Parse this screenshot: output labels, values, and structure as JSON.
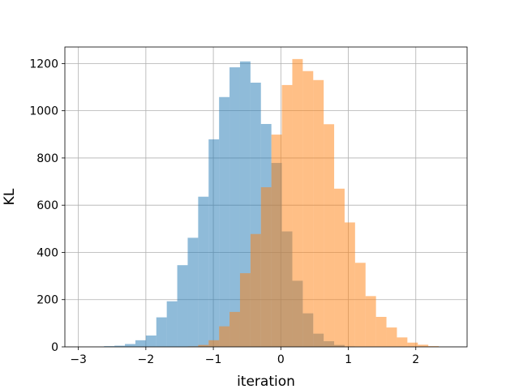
{
  "chart_data": {
    "type": "histogram",
    "xlabel": "iteration",
    "ylabel": "KL",
    "xlim": [
      -3.2,
      2.76
    ],
    "ylim": [
      0,
      1270
    ],
    "grid": true,
    "x_ticks": [
      -3,
      -2,
      -1,
      0,
      1,
      2
    ],
    "y_ticks": [
      0,
      200,
      400,
      600,
      800,
      1000,
      1200
    ],
    "bin_width": 0.155,
    "series": [
      {
        "color": "#1f77b4",
        "alpha": 0.5,
        "bins": [
          {
            "x0": -2.62,
            "value": 3
          },
          {
            "x0": -2.465,
            "value": 5
          },
          {
            "x0": -2.31,
            "value": 12
          },
          {
            "x0": -2.155,
            "value": 28
          },
          {
            "x0": -2.0,
            "value": 48
          },
          {
            "x0": -1.845,
            "value": 125
          },
          {
            "x0": -1.69,
            "value": 193
          },
          {
            "x0": -1.535,
            "value": 346
          },
          {
            "x0": -1.38,
            "value": 462
          },
          {
            "x0": -1.225,
            "value": 636
          },
          {
            "x0": -1.07,
            "value": 879
          },
          {
            "x0": -0.915,
            "value": 1058
          },
          {
            "x0": -0.76,
            "value": 1184
          },
          {
            "x0": -0.605,
            "value": 1209
          },
          {
            "x0": -0.45,
            "value": 1119
          },
          {
            "x0": -0.295,
            "value": 944
          },
          {
            "x0": -0.14,
            "value": 779
          },
          {
            "x0": 0.015,
            "value": 489
          },
          {
            "x0": 0.17,
            "value": 280
          },
          {
            "x0": 0.325,
            "value": 142
          },
          {
            "x0": 0.48,
            "value": 56
          },
          {
            "x0": 0.635,
            "value": 24
          },
          {
            "x0": 0.79,
            "value": 8
          },
          {
            "x0": 0.945,
            "value": 2
          }
        ]
      },
      {
        "color": "#ff7f0e",
        "alpha": 0.5,
        "bins": [
          {
            "x0": -1.38,
            "value": 2
          },
          {
            "x0": -1.225,
            "value": 8
          },
          {
            "x0": -1.07,
            "value": 28
          },
          {
            "x0": -0.915,
            "value": 87
          },
          {
            "x0": -0.76,
            "value": 148
          },
          {
            "x0": -0.605,
            "value": 312
          },
          {
            "x0": -0.45,
            "value": 478
          },
          {
            "x0": -0.295,
            "value": 676
          },
          {
            "x0": -0.14,
            "value": 899
          },
          {
            "x0": 0.015,
            "value": 1109
          },
          {
            "x0": 0.17,
            "value": 1219
          },
          {
            "x0": 0.325,
            "value": 1168
          },
          {
            "x0": 0.48,
            "value": 1130
          },
          {
            "x0": 0.635,
            "value": 943
          },
          {
            "x0": 0.79,
            "value": 670
          },
          {
            "x0": 0.945,
            "value": 527
          },
          {
            "x0": 1.1,
            "value": 356
          },
          {
            "x0": 1.255,
            "value": 215
          },
          {
            "x0": 1.41,
            "value": 127
          },
          {
            "x0": 1.565,
            "value": 82
          },
          {
            "x0": 1.72,
            "value": 40
          },
          {
            "x0": 1.875,
            "value": 18
          },
          {
            "x0": 2.03,
            "value": 9
          },
          {
            "x0": 2.185,
            "value": 3
          }
        ]
      }
    ]
  }
}
